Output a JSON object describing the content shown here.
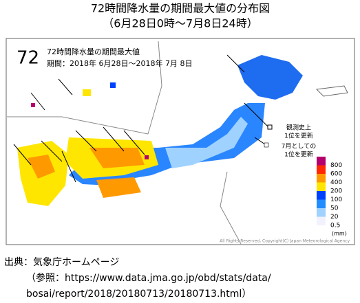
{
  "header": {
    "title": "72時間降水量の期間最大値の分布図",
    "subtitle": "（6月28日0時～7月8日24時）"
  },
  "map": {
    "number": "72",
    "heading": "72時間降水量の期間最大値",
    "period": "期間：2018年 6月28日～2018年 7月 8日",
    "annotations": [
      {
        "lines": [
          "観測史上",
          "1位を更新"
        ]
      },
      {
        "lines": [
          "7月としての",
          "1位を更新"
        ]
      }
    ],
    "legend": {
      "items": [
        {
          "label": 800,
          "color": "#b4006e"
        },
        {
          "label": 600,
          "color": "#ff2800"
        },
        {
          "label": 400,
          "color": "#ff9900"
        },
        {
          "label": 200,
          "color": "#ffe600"
        },
        {
          "label": 100,
          "color": "#0041ff"
        },
        {
          "label": 50,
          "color": "#218cff"
        },
        {
          "label": 20,
          "color": "#a0d2ff"
        },
        {
          "label": 0.5,
          "color": "#f2f2ff"
        }
      ],
      "unit": "(mm)"
    },
    "copyright": "All Rights Reserved, Copyright(C) Japan Meteorological Agency"
  },
  "source": {
    "lines": [
      "出典：気象庁ホームページ",
      "（参照：https://www.data.jma.go.jp/obd/stats/data/",
      "bosai/report/2018/20180713/20180713.html）"
    ]
  }
}
